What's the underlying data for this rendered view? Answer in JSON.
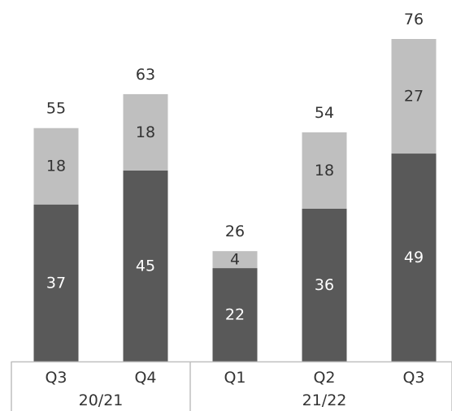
{
  "chart_data": {
    "type": "bar",
    "stacked": true,
    "categories": [
      "Q3",
      "Q4",
      "Q1",
      "Q2",
      "Q3"
    ],
    "groups": [
      {
        "label": "20/21",
        "category_indices": [
          0,
          1
        ]
      },
      {
        "label": "21/22",
        "category_indices": [
          2,
          3,
          4
        ]
      }
    ],
    "series": [
      {
        "values": [
          37,
          45,
          22,
          36,
          49
        ],
        "color": "#595959"
      },
      {
        "values": [
          18,
          18,
          4,
          18,
          27
        ],
        "color": "#bfbfbf"
      }
    ],
    "totals": [
      55,
      63,
      26,
      54,
      76
    ],
    "ylim": [
      0,
      76
    ],
    "grid": false,
    "legend": "none",
    "title": "",
    "xlabel": "",
    "ylabel": ""
  }
}
